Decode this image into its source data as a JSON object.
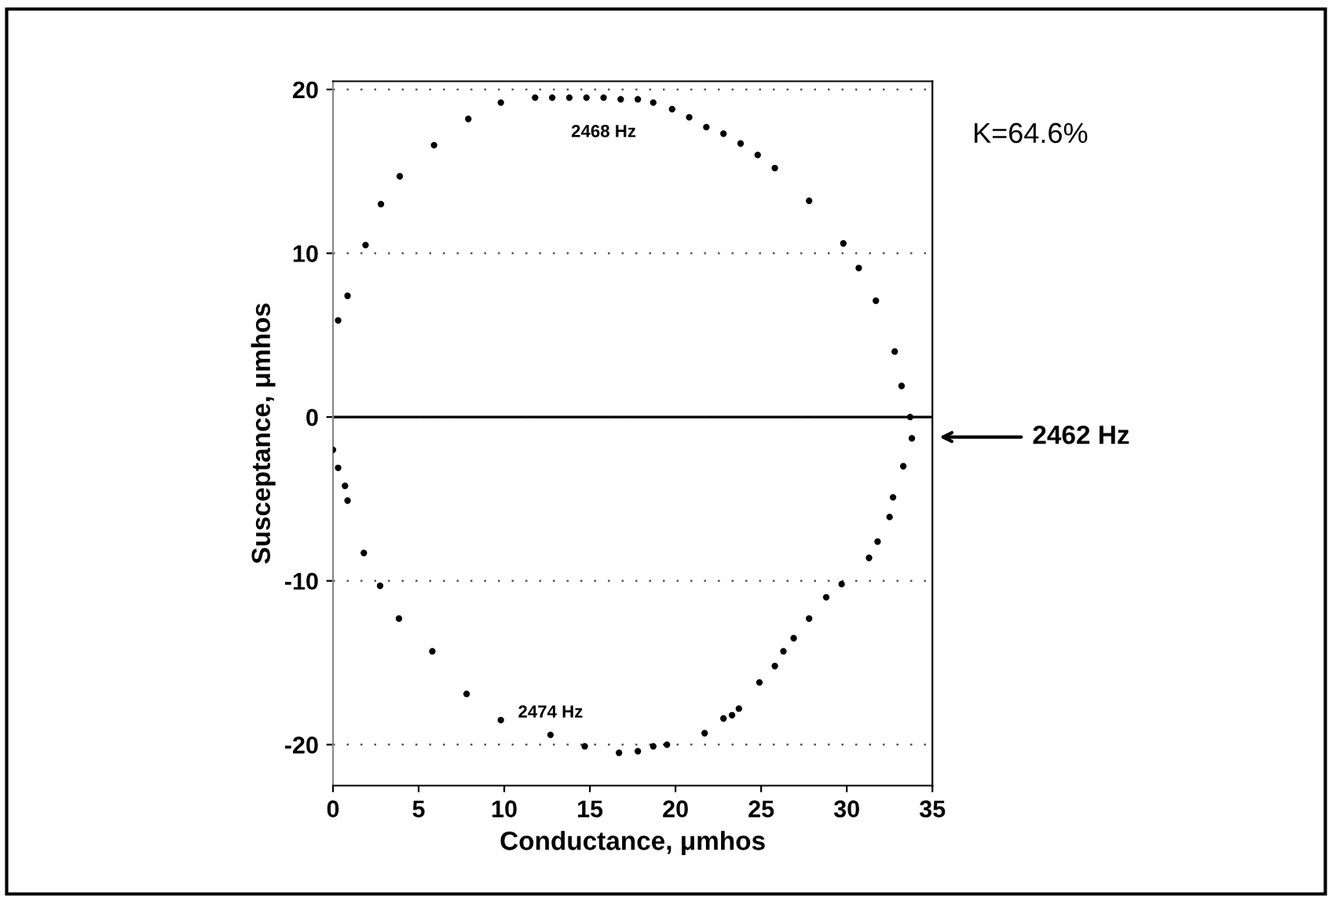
{
  "chart_data": {
    "type": "scatter",
    "xlabel": "Conductance, μmhos",
    "ylabel": "Susceptance, μmhos",
    "series": [
      {
        "color": "#000000",
        "x": [
          0.3,
          0.85,
          1.9,
          2.8,
          3.9,
          5.9,
          7.9,
          9.8,
          11.8,
          12.8,
          13.8,
          14.8,
          15.8,
          16.8,
          17.8,
          18.7,
          19.8,
          20.8,
          21.8,
          22.8,
          23.8,
          24.8,
          25.8,
          27.8,
          29.8,
          30.7,
          31.7,
          32.8,
          33.2,
          33.7,
          0.0,
          0.3,
          0.7,
          0.85,
          1.8,
          2.75,
          3.85,
          5.8,
          7.8,
          9.8,
          12.7,
          14.7,
          16.7,
          17.8,
          18.7,
          19.5,
          21.7,
          22.8,
          23.3,
          23.7,
          24.9,
          25.8,
          26.3,
          26.9,
          27.8,
          28.8,
          29.7,
          31.3,
          31.8,
          32.5,
          32.7,
          33.3,
          33.8
        ],
        "values": [
          5.9,
          7.4,
          10.5,
          13.0,
          14.7,
          16.6,
          18.2,
          19.2,
          19.5,
          19.5,
          19.5,
          19.5,
          19.5,
          19.4,
          19.4,
          19.2,
          18.8,
          18.3,
          17.7,
          17.3,
          16.7,
          16.0,
          15.2,
          13.2,
          10.6,
          9.1,
          7.1,
          4.0,
          1.9,
          0.0,
          -2.0,
          -3.1,
          -4.2,
          -5.1,
          -8.3,
          -10.3,
          -12.3,
          -14.3,
          -16.9,
          -18.5,
          -19.4,
          -20.1,
          -20.5,
          -20.4,
          -20.1,
          -20.0,
          -19.3,
          -18.4,
          -18.2,
          -17.8,
          -16.2,
          -15.2,
          -14.3,
          -13.5,
          -12.3,
          -11.0,
          -10.2,
          -8.6,
          -7.6,
          -6.1,
          -4.9,
          -3.0,
          -1.3
        ]
      }
    ],
    "marker": "circle",
    "xlim": [
      0,
      35
    ],
    "ylim": [
      -22.5,
      20.5
    ],
    "xticks": [
      0,
      5,
      10,
      15,
      20,
      25,
      30,
      35
    ],
    "yticks": [
      -20,
      -10,
      0,
      10,
      20
    ],
    "grid": "y",
    "ref_lines": [
      {
        "axis": "y",
        "value": 0,
        "color": "#000000",
        "line_style": "solid"
      }
    ],
    "annotations": [
      {
        "text": "2468 Hz",
        "x": 15.8,
        "y": 19.5
      },
      {
        "text": "2474 Hz",
        "x": 12.7,
        "y": -19.4
      },
      "2462 Hz",
      "K=64.6%"
    ]
  }
}
